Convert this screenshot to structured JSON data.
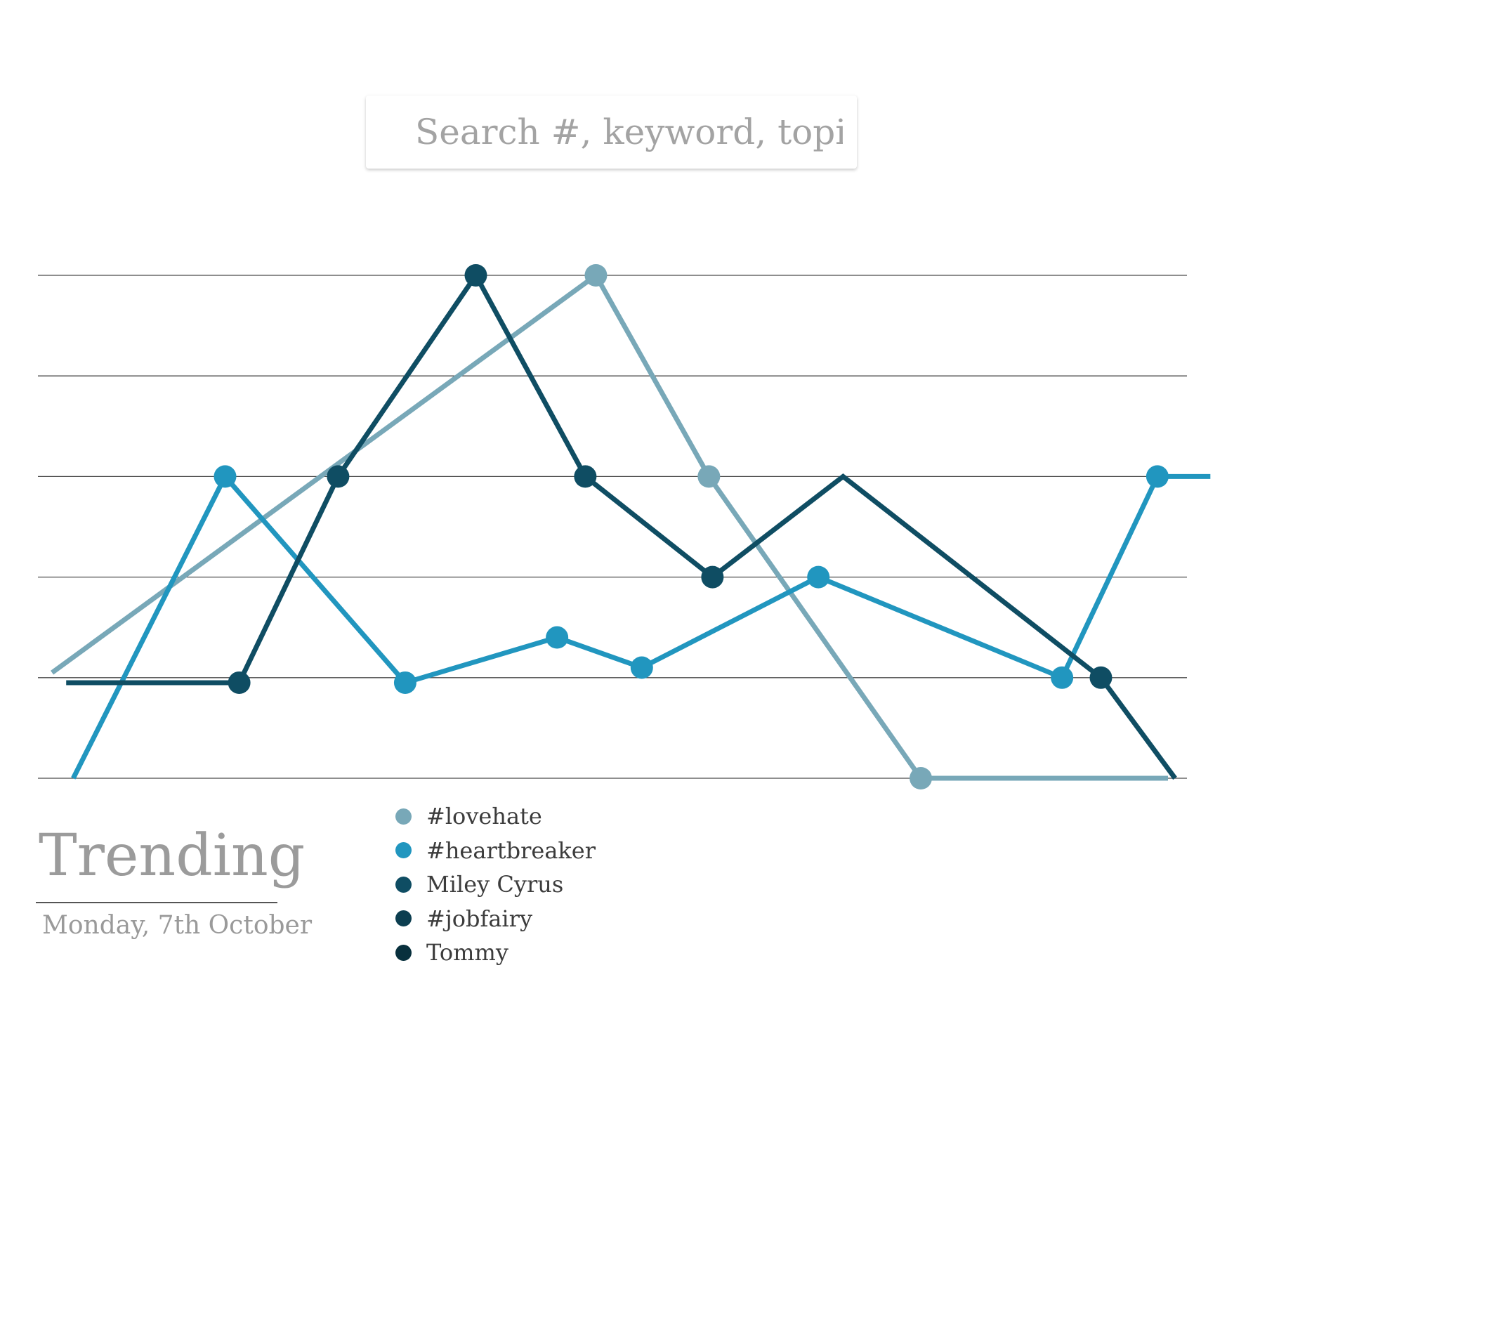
{
  "search": {
    "placeholder": "Search #, keyword, topic"
  },
  "trending": {
    "title": "Trending",
    "date": "Monday, 7th October"
  },
  "chart_data": {
    "type": "line",
    "title": "Trending",
    "subtitle": "Monday, 7th October",
    "xlabel": "",
    "ylabel": "",
    "xlim": [
      0,
      16
    ],
    "ylim": [
      0,
      5
    ],
    "grid": true,
    "gridlines": [
      0,
      1,
      2,
      3,
      4,
      5
    ],
    "legend_position": "bottom-left",
    "series": [
      {
        "name": "#lovehate",
        "color": "#78a8b8",
        "points": [
          [
            0.2,
            1.05
          ],
          [
            7.9,
            5.0
          ],
          [
            9.5,
            3.0
          ],
          [
            12.5,
            0.0
          ],
          [
            16.0,
            0.0
          ]
        ],
        "markers": [
          1,
          2,
          3
        ]
      },
      {
        "name": "#heartbreaker",
        "color": "#2196bf",
        "points": [
          [
            0.5,
            0.0
          ],
          [
            2.65,
            3.0
          ],
          [
            5.2,
            0.95
          ],
          [
            7.35,
            1.4
          ],
          [
            8.55,
            1.1
          ],
          [
            11.05,
            2.0
          ],
          [
            14.5,
            1.0
          ],
          [
            15.85,
            3.0
          ],
          [
            16.6,
            3.0
          ]
        ],
        "markers": [
          1,
          2,
          3,
          4,
          5,
          6,
          7
        ]
      },
      {
        "name": "Miley Cyrus",
        "color": "#0f4d63",
        "points": [
          [
            0.4,
            0.95
          ],
          [
            2.85,
            0.95
          ],
          [
            4.25,
            3.0
          ],
          [
            6.2,
            5.0
          ],
          [
            7.75,
            3.0
          ],
          [
            9.55,
            2.0
          ],
          [
            11.4,
            3.0
          ],
          [
            15.05,
            1.0
          ],
          [
            16.1,
            0.0
          ]
        ],
        "markers": [
          1,
          2,
          3,
          4,
          5,
          7
        ]
      }
    ],
    "legend": [
      {
        "name": "#lovehate",
        "color": "#78a8b8"
      },
      {
        "name": "#heartbreaker",
        "color": "#2196bf"
      },
      {
        "name": "Miley Cyrus",
        "color": "#0f4d63"
      },
      {
        "name": "#jobfairy",
        "color": "#0c3e50"
      },
      {
        "name": "Tommy",
        "color": "#08303d"
      }
    ]
  }
}
